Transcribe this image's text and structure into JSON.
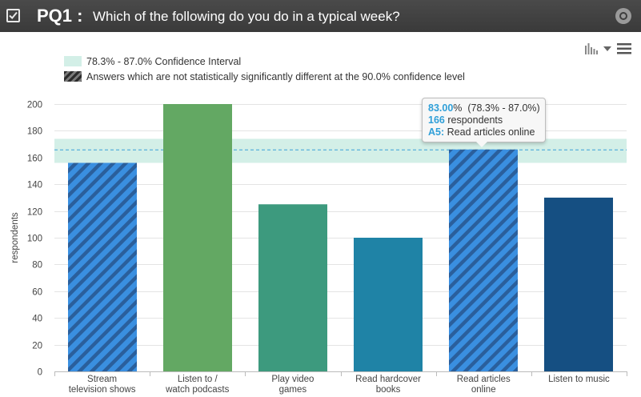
{
  "header": {
    "question_id": "PQ1 :",
    "question_text": "Which of the following do you do in a typical week?",
    "checkbox_icon": "checkbox-checked-icon",
    "settings_icon": "gear-icon"
  },
  "toolbar": {
    "chart_type_icon": "bar-chart-icon",
    "dropdown_icon": "caret-down-icon",
    "menu_icon": "hamburger-menu-icon"
  },
  "legend": {
    "ci_label": "78.3% - 87.0% Confidence Interval",
    "hatch_label": "Answers which are not statistically significantly different at the 90.0% confidence level"
  },
  "tooltip": {
    "percent": "83.00",
    "percent_suffix": "%",
    "interval": "(78.3% - 87.0%)",
    "count": "166",
    "count_suffix": "respondents",
    "answer_code": "A5:",
    "answer_text": "Read articles online"
  },
  "chart_data": {
    "type": "bar",
    "ylabel": "respondents",
    "xlabel": "",
    "ylim": [
      0,
      200
    ],
    "yticks": [
      0,
      20,
      40,
      60,
      80,
      100,
      120,
      140,
      160,
      180,
      200
    ],
    "categories": [
      [
        "Stream",
        "television shows"
      ],
      [
        "Listen to /",
        "watch podcasts"
      ],
      [
        "Play video",
        "games"
      ],
      [
        "Read hardcover",
        "books"
      ],
      [
        "Read articles",
        "online"
      ],
      [
        "Listen to music"
      ]
    ],
    "values": [
      156,
      200,
      125,
      100,
      166,
      130
    ],
    "hatched": [
      true,
      false,
      false,
      false,
      true,
      false
    ],
    "colors": [
      "#3a8fe0",
      "#63a863",
      "#3d9a7e",
      "#1f83a6",
      "#3a8fe0",
      "#154f82"
    ],
    "hatch_color": "#2a5f9c",
    "confidence_interval": {
      "low": 156,
      "high": 174,
      "mean": 166
    },
    "ci_color": "#d3efe7",
    "mean_line_color": "#3aa0d8",
    "grid": true
  }
}
